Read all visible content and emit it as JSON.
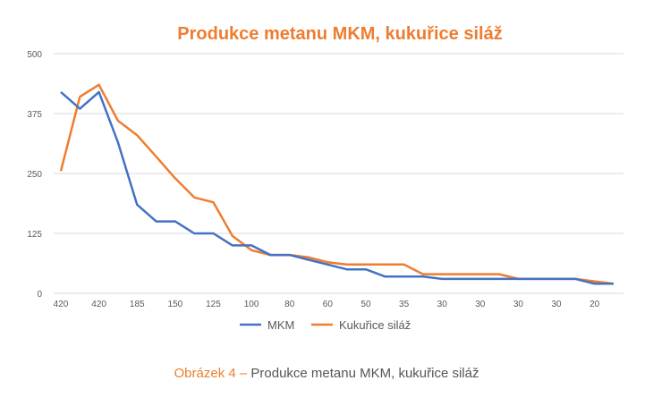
{
  "chart_data": {
    "type": "line",
    "title": "Produkce metanu MKM, kukuřice siláž",
    "xlabel": "",
    "ylabel": "",
    "ylim": [
      0,
      500
    ],
    "yticks": [
      "0",
      "125",
      "250",
      "375",
      "500"
    ],
    "x_tick_labels": [
      "420",
      "420",
      "185",
      "150",
      "125",
      "100",
      "80",
      "60",
      "50",
      "35",
      "30",
      "30",
      "30",
      "30",
      "20"
    ],
    "grid": true,
    "legend_position": "bottom",
    "series": [
      {
        "name": "MKM",
        "color": "#4472C4",
        "values": [
          420,
          385,
          420,
          315,
          185,
          150,
          150,
          125,
          125,
          100,
          100,
          80,
          80,
          70,
          60,
          50,
          50,
          35,
          35,
          35,
          30,
          30,
          30,
          30,
          30,
          30,
          30,
          30,
          20,
          20
        ]
      },
      {
        "name": "Kukuřice siláž",
        "color": "#ED7D31",
        "values": [
          255,
          410,
          435,
          360,
          330,
          285,
          240,
          200,
          190,
          120,
          90,
          80,
          80,
          75,
          65,
          60,
          60,
          60,
          60,
          40,
          40,
          40,
          40,
          40,
          30,
          30,
          30,
          30,
          25,
          20
        ]
      }
    ]
  },
  "caption": {
    "lead": "Obrázek 4 –",
    "text": " Produkce metanu MKM, kukuřice siláž"
  },
  "colors": {
    "title": "#ED7D31",
    "grid": "#D9D9D9",
    "axis_text": "#595959"
  }
}
